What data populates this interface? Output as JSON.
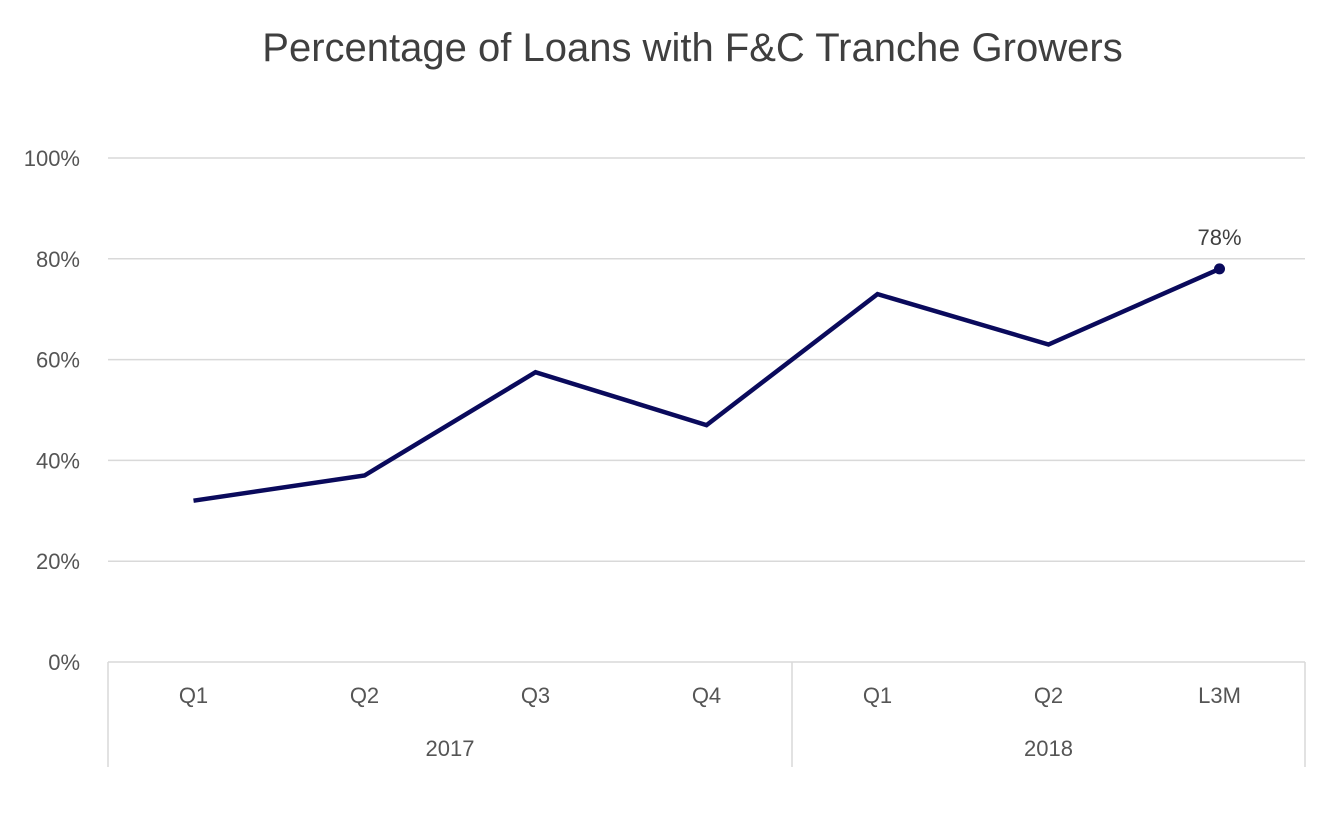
{
  "chart_data": {
    "type": "line",
    "title": "Percentage of Loans with F&C Tranche Growers",
    "xlabel": "",
    "ylabel": "",
    "categories": [
      "Q1",
      "Q2",
      "Q3",
      "Q4",
      "Q1",
      "Q2",
      "L3M"
    ],
    "category_groups": [
      {
        "label": "2017",
        "span": 4
      },
      {
        "label": "2018",
        "span": 3
      }
    ],
    "series": [
      {
        "values": [
          32,
          37,
          57.5,
          47,
          73,
          63,
          78
        ],
        "color": "#0a0a5c"
      }
    ],
    "data_labels": [
      {
        "index": 6,
        "text": "78%"
      }
    ],
    "yticks": [
      "0%",
      "20%",
      "40%",
      "60%",
      "80%",
      "100%"
    ],
    "ytick_values": [
      0,
      20,
      40,
      60,
      80,
      100
    ],
    "ylim": [
      0,
      100
    ],
    "grid": true,
    "legend": "none",
    "colors": {
      "line": "#0a0a5c",
      "grid": "#d9d9d9",
      "text": "#555555"
    }
  }
}
